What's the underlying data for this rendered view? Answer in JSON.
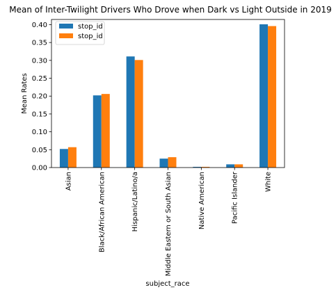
{
  "chart_data": {
    "type": "bar",
    "title": "Mean of Inter-Twilight Drivers Who Drove when Dark vs Light Outside in 2019",
    "xlabel": "subject_race",
    "ylabel": "Mean Rates",
    "categories": [
      "Asian",
      "Black/African American",
      "Hispanic/Latino/a",
      "Middle Eastern or South Asian",
      "Native American",
      "Pacific Islander",
      "White"
    ],
    "series": [
      {
        "name": "stop_id",
        "color": "#1f77b4",
        "values": [
          0.052,
          0.202,
          0.311,
          0.025,
          0.002,
          0.009,
          0.401
        ]
      },
      {
        "name": "stop_id",
        "color": "#ff7f0e",
        "values": [
          0.057,
          0.206,
          0.301,
          0.029,
          0.002,
          0.009,
          0.396
        ]
      }
    ],
    "ylim": [
      0,
      0.4145
    ],
    "yticks": [
      "0.00",
      "0.05",
      "0.10",
      "0.15",
      "0.20",
      "0.25",
      "0.30",
      "0.35",
      "0.40"
    ],
    "grid": false,
    "legend_position": "top-left"
  }
}
